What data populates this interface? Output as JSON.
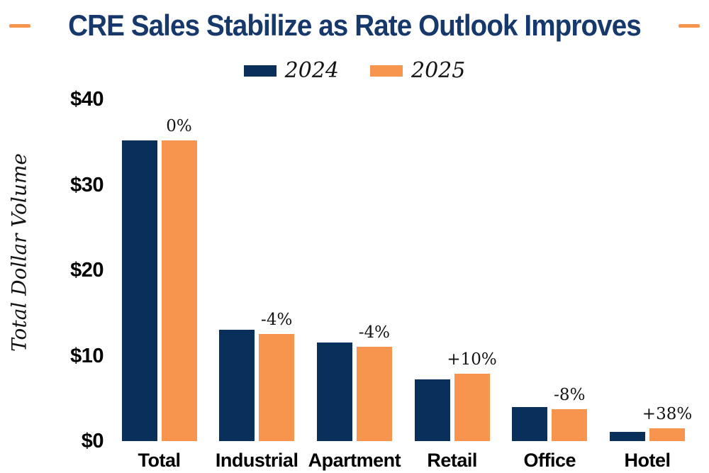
{
  "title": {
    "text": "CRE Sales Stabilize as Rate Outlook Improves",
    "color": "#17386A",
    "dash_color": "#F7944D"
  },
  "chart_data": {
    "type": "bar",
    "title": "CRE Sales Stabilize as Rate Outlook Improves",
    "categories": [
      "Total",
      "Industrial",
      "Apartment",
      "Retail",
      "Office",
      "Hotel"
    ],
    "series": [
      {
        "name": "2024",
        "color": "#092F5B",
        "values": [
          35.2,
          13.0,
          11.5,
          7.2,
          4.0,
          1.1
        ]
      },
      {
        "name": "2025",
        "color": "#F7944D",
        "values": [
          35.2,
          12.5,
          11.0,
          7.9,
          3.7,
          1.5
        ]
      }
    ],
    "labels": [
      "0%",
      "-4%",
      "-4%",
      "+10%",
      "-8%",
      "+38%"
    ],
    "xlabel": "",
    "ylabel": "Total Dollar Volume",
    "ylim": [
      0,
      40
    ],
    "yticks": [
      0,
      10,
      20,
      30,
      40
    ],
    "ytick_labels": [
      "$0",
      "$10",
      "$20",
      "$30",
      "$40"
    ],
    "grid": false,
    "legend_position": "top",
    "units": "billions of dollars (implied)"
  }
}
